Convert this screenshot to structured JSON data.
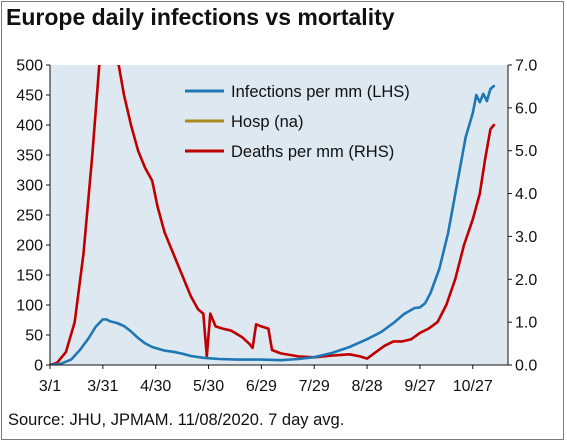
{
  "colors": {
    "plot_bg": "#dde8f0",
    "infections": "#1f77b4",
    "hosp": "#a88a1e",
    "deaths": "#c00000"
  },
  "chart_data": {
    "type": "line",
    "title": "Europe daily infections vs mortality",
    "source": "Source: JHU, JPMAM. 11/08/2020. 7 day avg.",
    "x_axis": {
      "start": "2020-03-01",
      "end": "2020-11-08",
      "ticks": [
        {
          "date": "2020-03-01",
          "label": "3/1"
        },
        {
          "date": "2020-03-31",
          "label": "3/31"
        },
        {
          "date": "2020-04-30",
          "label": "4/30"
        },
        {
          "date": "2020-05-30",
          "label": "5/30"
        },
        {
          "date": "2020-06-29",
          "label": "6/29"
        },
        {
          "date": "2020-07-29",
          "label": "7/29"
        },
        {
          "date": "2020-08-28",
          "label": "8/28"
        },
        {
          "date": "2020-09-27",
          "label": "9/27"
        },
        {
          "date": "2020-10-27",
          "label": "10/27"
        }
      ]
    },
    "y_left": {
      "min": 0,
      "max": 500,
      "ticks": [
        {
          "value": 0,
          "label": "0"
        },
        {
          "value": 50,
          "label": "50"
        },
        {
          "value": 100,
          "label": "100"
        },
        {
          "value": 150,
          "label": "150"
        },
        {
          "value": 200,
          "label": "200"
        },
        {
          "value": 250,
          "label": "250"
        },
        {
          "value": 300,
          "label": "300"
        },
        {
          "value": 350,
          "label": "350"
        },
        {
          "value": 400,
          "label": "400"
        },
        {
          "value": 450,
          "label": "450"
        },
        {
          "value": 500,
          "label": "500"
        }
      ]
    },
    "y_right": {
      "min": 0,
      "max": 7,
      "ticks": [
        {
          "value": 0,
          "label": "0.0"
        },
        {
          "value": 1,
          "label": "1.0"
        },
        {
          "value": 2,
          "label": "2.0"
        },
        {
          "value": 3,
          "label": "3.0"
        },
        {
          "value": 4,
          "label": "4.0"
        },
        {
          "value": 5,
          "label": "5.0"
        },
        {
          "value": 6,
          "label": "6.0"
        },
        {
          "value": 7,
          "label": "7.0"
        }
      ]
    },
    "legend_position": "top-right",
    "series": [
      {
        "name": "Infections per mm (LHS)",
        "axis": "left",
        "color_key": "infections",
        "points": [
          [
            "2020-03-01",
            0
          ],
          [
            "2020-03-07",
            2
          ],
          [
            "2020-03-13",
            9
          ],
          [
            "2020-03-18",
            25
          ],
          [
            "2020-03-23",
            45
          ],
          [
            "2020-03-27",
            64
          ],
          [
            "2020-03-31",
            76
          ],
          [
            "2020-04-02",
            76
          ],
          [
            "2020-04-04",
            73
          ],
          [
            "2020-04-08",
            70
          ],
          [
            "2020-04-12",
            65
          ],
          [
            "2020-04-16",
            56
          ],
          [
            "2020-04-20",
            45
          ],
          [
            "2020-04-24",
            36
          ],
          [
            "2020-04-28",
            30
          ],
          [
            "2020-05-05",
            24
          ],
          [
            "2020-05-10",
            22
          ],
          [
            "2020-05-15",
            19
          ],
          [
            "2020-05-20",
            15
          ],
          [
            "2020-05-27",
            12
          ],
          [
            "2020-06-05",
            10
          ],
          [
            "2020-06-15",
            9
          ],
          [
            "2020-06-29",
            9
          ],
          [
            "2020-07-10",
            8
          ],
          [
            "2020-07-20",
            10
          ],
          [
            "2020-07-29",
            13
          ],
          [
            "2020-08-08",
            20
          ],
          [
            "2020-08-18",
            30
          ],
          [
            "2020-08-28",
            43
          ],
          [
            "2020-09-05",
            55
          ],
          [
            "2020-09-12",
            70
          ],
          [
            "2020-09-18",
            85
          ],
          [
            "2020-09-24",
            95
          ],
          [
            "2020-09-27",
            96
          ],
          [
            "2020-09-30",
            103
          ],
          [
            "2020-10-03",
            120
          ],
          [
            "2020-10-08",
            160
          ],
          [
            "2020-10-13",
            220
          ],
          [
            "2020-10-18",
            300
          ],
          [
            "2020-10-23",
            380
          ],
          [
            "2020-10-27",
            420
          ],
          [
            "2020-10-29",
            450
          ],
          [
            "2020-10-31",
            438
          ],
          [
            "2020-11-02",
            452
          ],
          [
            "2020-11-04",
            440
          ],
          [
            "2020-11-06",
            460
          ],
          [
            "2020-11-08",
            465
          ]
        ]
      },
      {
        "name": "Hosp (na)",
        "axis": "left",
        "color_key": "hosp",
        "points": []
      },
      {
        "name": "Deaths per mm (RHS)",
        "axis": "right",
        "color_key": "deaths",
        "points": [
          [
            "2020-03-01",
            0
          ],
          [
            "2020-03-05",
            0.05
          ],
          [
            "2020-03-10",
            0.3
          ],
          [
            "2020-03-15",
            1.0
          ],
          [
            "2020-03-20",
            2.6
          ],
          [
            "2020-03-25",
            4.9
          ],
          [
            "2020-03-29",
            7.0
          ],
          [
            "2020-03-31",
            7.7
          ],
          [
            "2020-04-07",
            7.7
          ],
          [
            "2020-04-09",
            7.0
          ],
          [
            "2020-04-12",
            6.3
          ],
          [
            "2020-04-16",
            5.6
          ],
          [
            "2020-04-20",
            5.0
          ],
          [
            "2020-04-24",
            4.6
          ],
          [
            "2020-04-28",
            4.3
          ],
          [
            "2020-05-01",
            3.7
          ],
          [
            "2020-05-05",
            3.1
          ],
          [
            "2020-05-10",
            2.6
          ],
          [
            "2020-05-15",
            2.1
          ],
          [
            "2020-05-20",
            1.6
          ],
          [
            "2020-05-24",
            1.3
          ],
          [
            "2020-05-27",
            1.2
          ],
          [
            "2020-05-29",
            0.2
          ],
          [
            "2020-05-31",
            1.2
          ],
          [
            "2020-06-03",
            0.9
          ],
          [
            "2020-06-07",
            0.85
          ],
          [
            "2020-06-12",
            0.8
          ],
          [
            "2020-06-18",
            0.65
          ],
          [
            "2020-06-22",
            0.5
          ],
          [
            "2020-06-24",
            0.4
          ],
          [
            "2020-06-26",
            0.95
          ],
          [
            "2020-06-29",
            0.9
          ],
          [
            "2020-07-03",
            0.85
          ],
          [
            "2020-07-05",
            0.35
          ],
          [
            "2020-07-10",
            0.27
          ],
          [
            "2020-07-20",
            0.2
          ],
          [
            "2020-07-29",
            0.18
          ],
          [
            "2020-08-08",
            0.22
          ],
          [
            "2020-08-18",
            0.25
          ],
          [
            "2020-08-24",
            0.2
          ],
          [
            "2020-08-28",
            0.15
          ],
          [
            "2020-09-02",
            0.3
          ],
          [
            "2020-09-07",
            0.45
          ],
          [
            "2020-09-12",
            0.55
          ],
          [
            "2020-09-17",
            0.55
          ],
          [
            "2020-09-22",
            0.6
          ],
          [
            "2020-09-27",
            0.75
          ],
          [
            "2020-10-02",
            0.85
          ],
          [
            "2020-10-07",
            1.0
          ],
          [
            "2020-10-12",
            1.4
          ],
          [
            "2020-10-17",
            2.0
          ],
          [
            "2020-10-22",
            2.8
          ],
          [
            "2020-10-27",
            3.4
          ],
          [
            "2020-10-31",
            4.0
          ],
          [
            "2020-11-03",
            4.8
          ],
          [
            "2020-11-06",
            5.5
          ],
          [
            "2020-11-08",
            5.6
          ]
        ]
      }
    ]
  }
}
